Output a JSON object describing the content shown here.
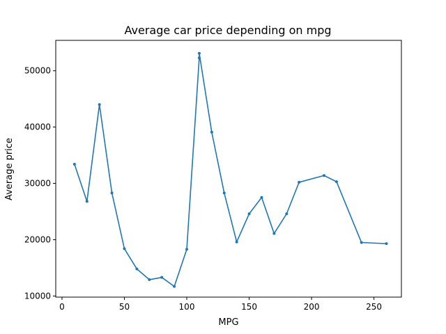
{
  "chart_data": {
    "type": "line",
    "title": "Average car price depending on mpg",
    "xlabel": "MPG",
    "ylabel": "Average price",
    "xlim": [
      -5,
      272
    ],
    "ylim": [
      9800,
      55400
    ],
    "xticks": [
      0,
      50,
      100,
      150,
      200,
      250
    ],
    "yticks": [
      10000,
      20000,
      30000,
      40000,
      50000
    ],
    "grid": false,
    "series": [
      {
        "color": "#1f77b4",
        "x": [
          10,
          20,
          30,
          40,
          50,
          60,
          70,
          80,
          90,
          100,
          110,
          110,
          120,
          130,
          140,
          150,
          160,
          170,
          180,
          190,
          210,
          220,
          240,
          260
        ],
        "y": [
          33400,
          26800,
          44000,
          28300,
          18400,
          14800,
          12900,
          13300,
          11700,
          18300,
          52300,
          53100,
          39100,
          28300,
          19600,
          24600,
          27500,
          21100,
          24600,
          30200,
          31400,
          30300,
          19500,
          19300
        ]
      }
    ]
  }
}
